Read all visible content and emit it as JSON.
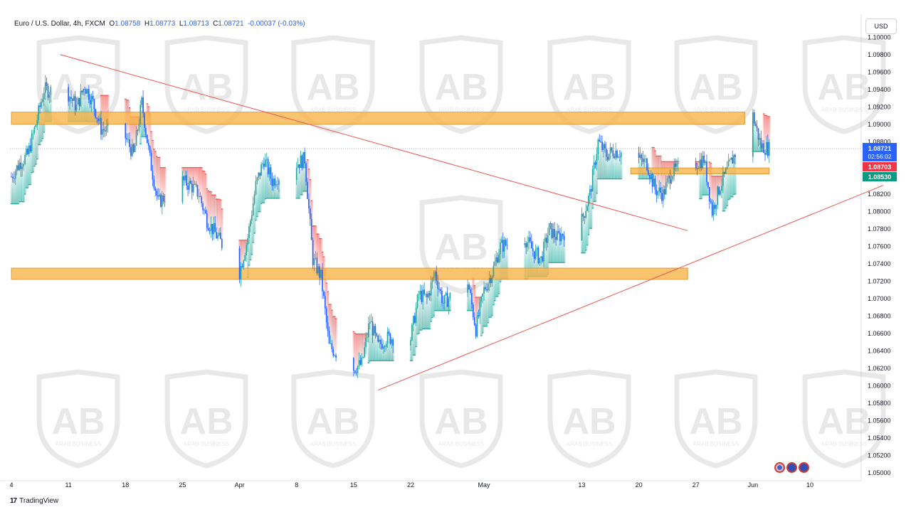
{
  "header": {
    "symbol": "Euro / U.S. Dollar, 4h, FXCM",
    "open_label": "O",
    "open": "1.08758",
    "high_label": "H",
    "high": "1.08773",
    "low_label": "L",
    "low": "1.08713",
    "close_label": "C",
    "close": "1.08721",
    "change": "-0.00037 (-0.03%)"
  },
  "currency_button": "USD",
  "footer": {
    "logo": "17",
    "brand": "TradingView"
  },
  "watermark_text": "ARAB BUSINESS",
  "colors": {
    "up": "#26a69a",
    "down": "#2962ff",
    "zone": "#f9b44a",
    "trendline": "#ef5350",
    "cloud_up": "#26a69a",
    "cloud_down": "#ef5350",
    "price_label": "#2962ff",
    "level_red": "#f23645",
    "level_green": "#089981"
  },
  "chart_data": {
    "type": "candlestick",
    "title": "Euro / U.S. Dollar, 4h, FXCM",
    "ylim": [
      1.05,
      1.101
    ],
    "xlim": [
      "2024-03-04",
      "2024-06-10"
    ],
    "y_ticks": [
      "1.10000",
      "1.09800",
      "1.09600",
      "1.09400",
      "1.09200",
      "1.09000",
      "1.08800",
      "1.08600",
      "1.08400",
      "1.08200",
      "1.08000",
      "1.07800",
      "1.07600",
      "1.07400",
      "1.07200",
      "1.07000",
      "1.06800",
      "1.06600",
      "1.06400",
      "1.06200",
      "1.06000",
      "1.05800",
      "1.05600",
      "1.05400",
      "1.05200",
      "1.05000"
    ],
    "x_ticks": [
      {
        "label": "4",
        "date": "2024-03-04"
      },
      {
        "label": "11",
        "date": "2024-03-11"
      },
      {
        "label": "18",
        "date": "2024-03-18"
      },
      {
        "label": "25",
        "date": "2024-03-25"
      },
      {
        "label": "Apr",
        "date": "2024-04-01"
      },
      {
        "label": "8",
        "date": "2024-04-08"
      },
      {
        "label": "15",
        "date": "2024-04-15"
      },
      {
        "label": "22",
        "date": "2024-04-22"
      },
      {
        "label": "May",
        "date": "2024-05-01"
      },
      {
        "label": "13",
        "date": "2024-05-13"
      },
      {
        "label": "20",
        "date": "2024-05-20"
      },
      {
        "label": "27",
        "date": "2024-05-27"
      },
      {
        "label": "Jun",
        "date": "2024-06-03"
      },
      {
        "label": "10",
        "date": "2024-06-10"
      }
    ],
    "price_path": [
      [
        "2024-03-04",
        1.084
      ],
      [
        "2024-03-05",
        1.0855
      ],
      [
        "2024-03-06",
        1.0865
      ],
      [
        "2024-03-07",
        1.09
      ],
      [
        "2024-03-08",
        1.094
      ],
      [
        "2024-03-11",
        1.0935
      ],
      [
        "2024-03-12",
        1.092
      ],
      [
        "2024-03-13",
        1.0945
      ],
      [
        "2024-03-14",
        1.0925
      ],
      [
        "2024-03-15",
        1.0895
      ],
      [
        "2024-03-18",
        1.0885
      ],
      [
        "2024-03-19",
        1.0865
      ],
      [
        "2024-03-20",
        1.0925
      ],
      [
        "2024-03-21",
        1.086
      ],
      [
        "2024-03-22",
        1.081
      ],
      [
        "2024-03-25",
        1.0835
      ],
      [
        "2024-03-26",
        1.083
      ],
      [
        "2024-03-27",
        1.082
      ],
      [
        "2024-03-28",
        1.079
      ],
      [
        "2024-04-01",
        1.073
      ],
      [
        "2024-04-02",
        1.077
      ],
      [
        "2024-04-03",
        1.083
      ],
      [
        "2024-04-04",
        1.086
      ],
      [
        "2024-04-05",
        1.0835
      ],
      [
        "2024-04-08",
        1.0855
      ],
      [
        "2024-04-09",
        1.086
      ],
      [
        "2024-04-10",
        1.0745
      ],
      [
        "2024-04-11",
        1.0725
      ],
      [
        "2024-04-12",
        1.0645
      ],
      [
        "2024-04-15",
        1.062
      ],
      [
        "2024-04-16",
        1.0625
      ],
      [
        "2024-04-17",
        1.0675
      ],
      [
        "2024-04-18",
        1.0645
      ],
      [
        "2024-04-19",
        1.0655
      ],
      [
        "2024-04-22",
        1.0655
      ],
      [
        "2024-04-23",
        1.0705
      ],
      [
        "2024-04-24",
        1.07
      ],
      [
        "2024-04-25",
        1.073
      ],
      [
        "2024-04-26",
        1.0695
      ],
      [
        "2024-04-29",
        1.072
      ],
      [
        "2024-04-30",
        1.0665
      ],
      [
        "2024-05-01",
        1.071
      ],
      [
        "2024-05-02",
        1.073
      ],
      [
        "2024-05-03",
        1.076
      ],
      [
        "2024-05-06",
        1.077
      ],
      [
        "2024-05-07",
        1.0755
      ],
      [
        "2024-05-08",
        1.0745
      ],
      [
        "2024-05-09",
        1.078
      ],
      [
        "2024-05-10",
        1.077
      ],
      [
        "2024-05-13",
        1.079
      ],
      [
        "2024-05-14",
        1.082
      ],
      [
        "2024-05-15",
        1.088
      ],
      [
        "2024-05-16",
        1.0865
      ],
      [
        "2024-05-17",
        1.087
      ],
      [
        "2024-05-20",
        1.086
      ],
      [
        "2024-05-21",
        1.0855
      ],
      [
        "2024-05-22",
        1.0825
      ],
      [
        "2024-05-23",
        1.082
      ],
      [
        "2024-05-24",
        1.0845
      ],
      [
        "2024-05-27",
        1.0855
      ],
      [
        "2024-05-28",
        1.086
      ],
      [
        "2024-05-29",
        1.08
      ],
      [
        "2024-05-30",
        1.083
      ],
      [
        "2024-05-31",
        1.085
      ],
      [
        "2024-06-03",
        1.091
      ],
      [
        "2024-06-04",
        1.0875
      ],
      [
        "2024-06-05",
        1.0872
      ]
    ],
    "zones": [
      {
        "name": "resistance",
        "y_low": 1.09,
        "y_high": 1.0914,
        "x_start": "2024-03-04",
        "x_end": "2024-06-02"
      },
      {
        "name": "support",
        "y_low": 1.0722,
        "y_high": 1.0735,
        "x_start": "2024-03-04",
        "x_end": "2024-05-26"
      },
      {
        "name": "minor",
        "y_low": 1.0843,
        "y_high": 1.085,
        "x_start": "2024-05-19",
        "x_end": "2024-06-05"
      }
    ],
    "trendlines": [
      {
        "name": "descending",
        "from": [
          "2024-03-10",
          1.098
        ],
        "to": [
          "2024-05-26",
          1.0778
        ]
      },
      {
        "name": "ascending",
        "from": [
          "2024-04-18",
          1.0595
        ],
        "to": [
          "2024-06-19",
          1.083
        ]
      }
    ],
    "last_price": {
      "value": "1.08721",
      "countdown": "02:56:02"
    },
    "levels": [
      {
        "value": "1.08703",
        "kind": "red"
      },
      {
        "value": "1.08530",
        "kind": "green"
      }
    ]
  }
}
